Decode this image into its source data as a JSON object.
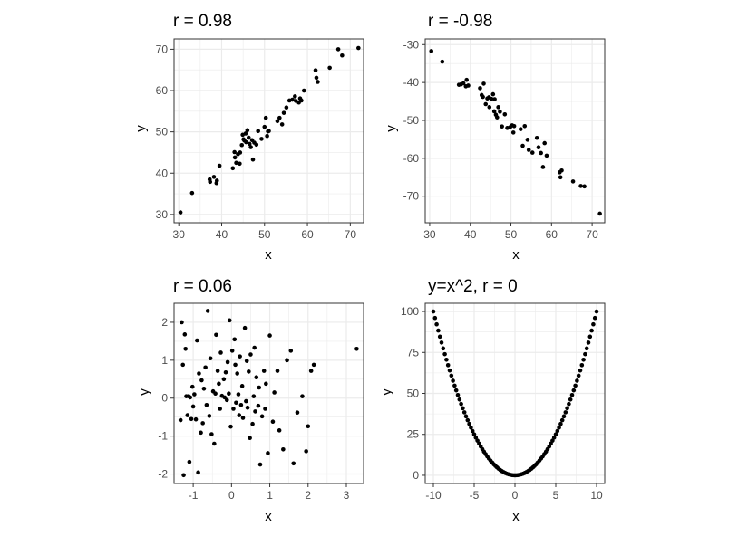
{
  "chart_data": [
    {
      "type": "scatter",
      "title": "r = 0.98",
      "xlabel": "x",
      "ylabel": "y",
      "xlim": [
        28.9,
        73.1
      ],
      "ylim": [
        28.0,
        72.5
      ],
      "xticks": [
        30,
        40,
        50,
        60,
        70
      ],
      "yticks": [
        30,
        40,
        50,
        60,
        70
      ],
      "grid": true,
      "colors": {
        "point": "#000000",
        "grid": "#ebebeb",
        "border": "#333333"
      },
      "points": {
        "x": [
          30.4,
          33.1,
          37.2,
          37.3,
          38.2,
          38.8,
          38.9,
          39.5,
          42.6,
          43.0,
          43.1,
          43.4,
          43.8,
          44.2,
          44.3,
          44.7,
          44.9,
          45.1,
          45.3,
          45.6,
          45.7,
          46.0,
          46.3,
          46.5,
          46.8,
          47.1,
          47.3,
          47.6,
          48.1,
          48.5,
          49.3,
          50.0,
          50.3,
          50.6,
          50.8,
          51.0,
          53.0,
          53.5,
          54.1,
          54.5,
          55.1,
          55.8,
          56.5,
          57.1,
          57.3,
          58.0,
          58.3,
          58.6,
          59.2,
          61.9,
          62.1,
          62.4,
          65.2,
          67.2,
          68.1,
          71.9
        ],
        "y": [
          30.5,
          35.2,
          38.5,
          37.9,
          39.1,
          37.6,
          38.2,
          41.8,
          41.2,
          45.1,
          43.8,
          42.5,
          44.6,
          42.3,
          45.0,
          46.8,
          49.3,
          48.2,
          47.9,
          49.6,
          47.5,
          50.4,
          48.6,
          47.1,
          46.3,
          48.0,
          43.3,
          47.4,
          46.9,
          50.2,
          48.3,
          51.2,
          53.4,
          49.0,
          50.1,
          50.2,
          52.6,
          53.4,
          51.8,
          54.6,
          55.9,
          57.6,
          57.8,
          58.6,
          57.5,
          57.1,
          58.1,
          57.6,
          60.0,
          64.9,
          63.1,
          62.1,
          65.5,
          70.0,
          68.5,
          70.3
        ]
      }
    },
    {
      "type": "scatter",
      "title": "r = -0.98",
      "xlabel": "x",
      "ylabel": "y",
      "xlim": [
        28.9,
        73.1
      ],
      "ylim": [
        -77.0,
        -28.5
      ],
      "xticks": [
        30,
        40,
        50,
        60,
        70
      ],
      "yticks": [
        -30,
        -40,
        -50,
        -60,
        -70
      ],
      "grid": true,
      "colors": {
        "point": "#000000",
        "grid": "#ebebeb",
        "border": "#333333"
      },
      "points": {
        "x": [
          30.4,
          33.1,
          37.2,
          37.7,
          38.3,
          38.9,
          39.1,
          39.5,
          42.4,
          42.8,
          43.1,
          43.3,
          43.8,
          44.2,
          44.6,
          44.7,
          45.2,
          45.6,
          45.9,
          46.0,
          46.3,
          46.6,
          46.9,
          47.3,
          47.8,
          48.5,
          49.1,
          49.8,
          50.3,
          50.6,
          50.8,
          52.4,
          52.9,
          53.4,
          54.1,
          54.4,
          55.3,
          56.4,
          56.8,
          57.4,
          57.9,
          58.3,
          58.8,
          62.0,
          62.2,
          62.5,
          65.3,
          67.2,
          68.1,
          71.9
        ],
        "y": [
          -31.7,
          -34.5,
          -40.6,
          -40.5,
          -40.2,
          -41.0,
          -39.3,
          -40.8,
          -41.5,
          -43.3,
          -43.8,
          -40.3,
          -45.7,
          -44.2,
          -43.9,
          -46.5,
          -44.3,
          -43.1,
          -47.6,
          -44.4,
          -48.5,
          -49.2,
          -46.5,
          -47.7,
          -51.6,
          -48.4,
          -52.0,
          -51.8,
          -51.3,
          -53.2,
          -51.5,
          -52.3,
          -56.7,
          -51.5,
          -55.1,
          -57.8,
          -58.5,
          -54.6,
          -57.1,
          -58.6,
          -62.3,
          -56.0,
          -59.3,
          -63.7,
          -65.0,
          -63.2,
          -66.1,
          -67.3,
          -67.4,
          -74.6
        ]
      }
    },
    {
      "type": "scatter",
      "title": "r = 0.06",
      "xlabel": "x",
      "ylabel": "y",
      "xlim": [
        -1.5,
        3.45
      ],
      "ylim": [
        -2.25,
        2.5
      ],
      "xticks": [
        -1,
        0,
        1,
        2,
        3
      ],
      "yticks": [
        -2,
        -1,
        0,
        1,
        2
      ],
      "grid": true,
      "colors": {
        "point": "#000000",
        "grid": "#ebebeb",
        "border": "#333333"
      },
      "points": {
        "x": [
          -1.33,
          -1.3,
          -1.27,
          -1.25,
          -1.22,
          -1.2,
          -1.18,
          -1.15,
          -1.12,
          -1.1,
          -1.08,
          -1.05,
          -1.02,
          -1.0,
          -0.97,
          -0.93,
          -0.9,
          -0.87,
          -0.85,
          -0.8,
          -0.78,
          -0.75,
          -0.72,
          -0.68,
          -0.65,
          -0.62,
          -0.58,
          -0.55,
          -0.52,
          -0.48,
          -0.45,
          -0.42,
          -0.4,
          -0.36,
          -0.33,
          -0.3,
          -0.28,
          -0.25,
          -0.2,
          -0.18,
          -0.15,
          -0.12,
          -0.1,
          -0.07,
          -0.05,
          -0.02,
          0.02,
          0.05,
          0.08,
          0.1,
          0.12,
          0.15,
          0.18,
          0.2,
          0.22,
          0.25,
          0.28,
          0.3,
          0.35,
          0.38,
          0.4,
          0.42,
          0.45,
          0.48,
          0.5,
          0.55,
          0.58,
          0.6,
          0.62,
          0.65,
          0.7,
          0.72,
          0.75,
          0.8,
          0.85,
          0.88,
          0.9,
          0.95,
          1.0,
          1.08,
          1.12,
          1.2,
          1.25,
          1.35,
          1.45,
          1.55,
          1.62,
          1.72,
          1.85,
          1.95,
          2.0,
          2.08,
          2.15,
          3.27
        ],
        "y": [
          -0.58,
          2.0,
          0.88,
          -2.03,
          1.68,
          1.3,
          0.05,
          -0.45,
          0.05,
          -1.68,
          0.02,
          -0.55,
          0.3,
          -0.22,
          0.1,
          -0.56,
          1.52,
          -1.96,
          0.65,
          -0.91,
          0.47,
          -0.66,
          0.25,
          0.81,
          -0.18,
          2.3,
          -0.47,
          1.05,
          -0.95,
          0.18,
          -1.2,
          0.12,
          1.67,
          0.72,
          0.38,
          -0.28,
          1.2,
          0.06,
          0.5,
          0.02,
          0.68,
          -0.05,
          0.95,
          0.12,
          2.05,
          -0.75,
          1.25,
          -0.28,
          1.55,
          0.88,
          -0.12,
          0.65,
          0.1,
          -0.45,
          1.1,
          -0.18,
          0.32,
          -0.52,
          1.85,
          -0.08,
          0.98,
          -0.25,
          0.7,
          -1.05,
          1.15,
          -0.68,
          0.05,
          1.33,
          -0.35,
          0.55,
          -0.2,
          0.28,
          -1.75,
          -0.48,
          0.72,
          -0.28,
          0.38,
          -1.45,
          1.65,
          -0.62,
          0.15,
          0.72,
          -0.85,
          -1.35,
          1.0,
          1.25,
          -1.72,
          -0.38,
          0.05,
          -1.4,
          -0.74,
          0.72,
          0.88,
          1.3
        ]
      }
    },
    {
      "type": "scatter",
      "title": "y=x^2, r = 0",
      "xlabel": "x",
      "ylabel": "y",
      "xlim": [
        -11.0,
        11.0
      ],
      "ylim": [
        -5.0,
        105.0
      ],
      "xticks": [
        -10,
        -5,
        0,
        5,
        10
      ],
      "yticks": [
        0,
        25,
        50,
        75,
        100
      ],
      "grid": true,
      "colors": {
        "point": "#000000",
        "grid": "#ebebeb",
        "border": "#333333"
      },
      "points": {
        "formula": "y = x^2",
        "x_from": -10,
        "x_to": 10,
        "x_step": 0.2
      }
    }
  ]
}
